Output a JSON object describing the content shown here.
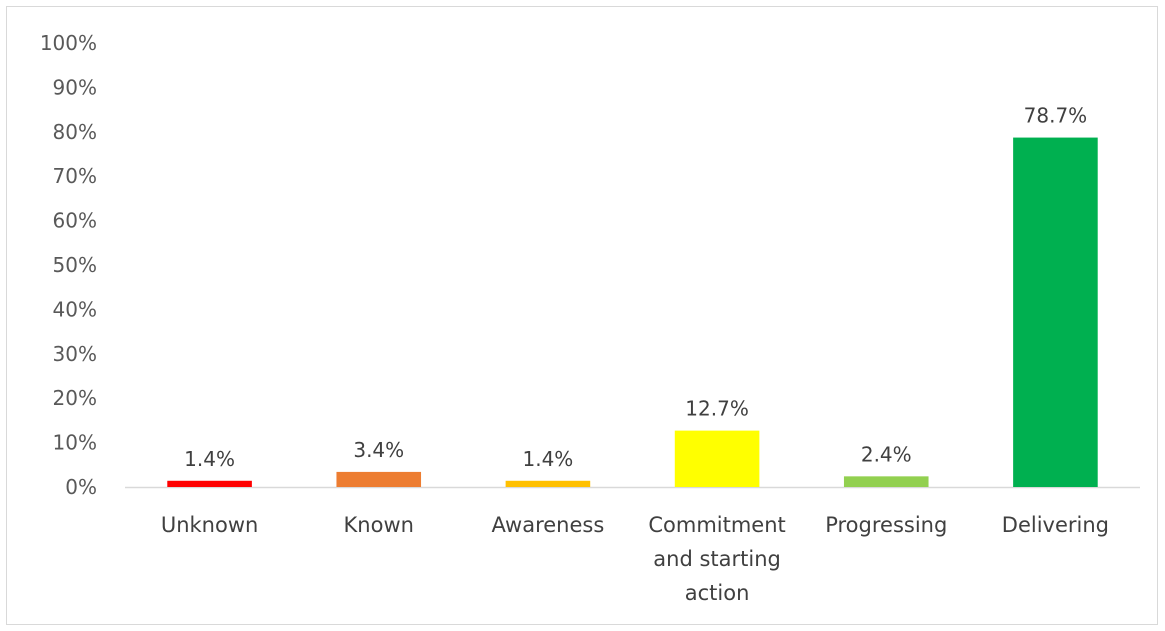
{
  "chart_data": {
    "type": "bar",
    "categories": [
      "Unknown",
      "Known",
      "Awareness",
      "Commitment and starting action",
      "Progressing",
      "Delivering"
    ],
    "category_lines": [
      [
        "Unknown"
      ],
      [
        "Known"
      ],
      [
        "Awareness"
      ],
      [
        "Commitment",
        "and starting",
        "action"
      ],
      [
        "Progressing"
      ],
      [
        "Delivering"
      ]
    ],
    "values": [
      1.4,
      3.4,
      1.4,
      12.7,
      2.4,
      78.7
    ],
    "data_labels": [
      "1.4%",
      "3.4%",
      "1.4%",
      "12.7%",
      "2.4%",
      "78.7%"
    ],
    "colors": [
      "#ff0000",
      "#ed7d31",
      "#ffc000",
      "#ffff00",
      "#92d050",
      "#00b050"
    ],
    "ylim": [
      0,
      100
    ],
    "yticks": [
      0,
      10,
      20,
      30,
      40,
      50,
      60,
      70,
      80,
      90,
      100
    ],
    "ytick_labels": [
      "0%",
      "10%",
      "20%",
      "30%",
      "40%",
      "50%",
      "60%",
      "70%",
      "80%",
      "90%",
      "100%"
    ],
    "title": "",
    "xlabel": "",
    "ylabel": "",
    "grid": false,
    "legend": "none"
  }
}
